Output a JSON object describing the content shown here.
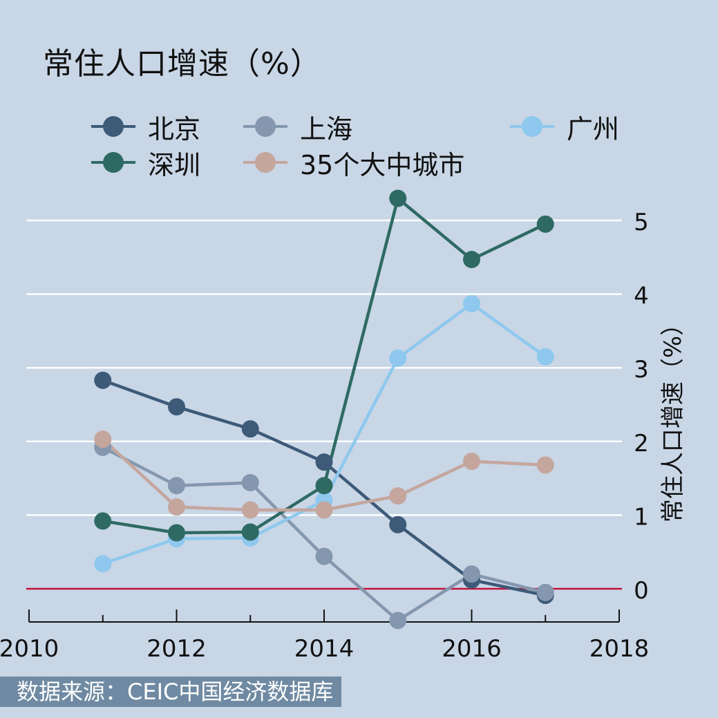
{
  "title": "常住人口增速（%）",
  "source": "数据来源：CEIC中国经济数据库",
  "legend": [
    {
      "label": "北京",
      "color": "#3d5a78"
    },
    {
      "label": "上海",
      "color": "#8497ae"
    },
    {
      "label": "广州",
      "color": "#8ec8ee"
    },
    {
      "label": "深圳",
      "color": "#2e6a63"
    },
    {
      "label": "35个大中城市",
      "color": "#c4a69d"
    }
  ],
  "chart_data": {
    "type": "line",
    "title": "常住人口增速（%）",
    "xlabel": "",
    "ylabel": "常住人口增速（%）",
    "xlim": [
      2010,
      2018
    ],
    "ylim": [
      -0.45,
      5.4
    ],
    "x_ticks": [
      "2010",
      "2012",
      "2014",
      "2016",
      "2018"
    ],
    "y_ticks": [
      "0",
      "1",
      "2",
      "3",
      "4",
      "5"
    ],
    "y_axis_position": "right",
    "grid": "horizontal",
    "zero_line_color": "#c2113a",
    "legend_position": "top",
    "x": [
      2011,
      2012,
      2013,
      2014,
      2015,
      2016,
      2017
    ],
    "series": [
      {
        "name": "北京",
        "color": "#3d5a78",
        "values": [
          2.83,
          2.47,
          2.17,
          1.72,
          0.87,
          0.12,
          -0.09
        ]
      },
      {
        "name": "上海",
        "color": "#8497ae",
        "values": [
          1.92,
          1.4,
          1.44,
          0.44,
          -0.43,
          0.2,
          -0.05
        ]
      },
      {
        "name": "广州",
        "color": "#8ec8ee",
        "values": [
          0.34,
          0.68,
          0.69,
          1.2,
          3.13,
          3.87,
          3.15
        ]
      },
      {
        "name": "深圳",
        "color": "#2e6a63",
        "values": [
          0.92,
          0.76,
          0.77,
          1.4,
          5.3,
          4.47,
          4.95
        ]
      },
      {
        "name": "35个大中城市",
        "color": "#c4a69d",
        "values": [
          2.03,
          1.11,
          1.07,
          1.07,
          1.26,
          1.73,
          1.68
        ]
      }
    ]
  }
}
